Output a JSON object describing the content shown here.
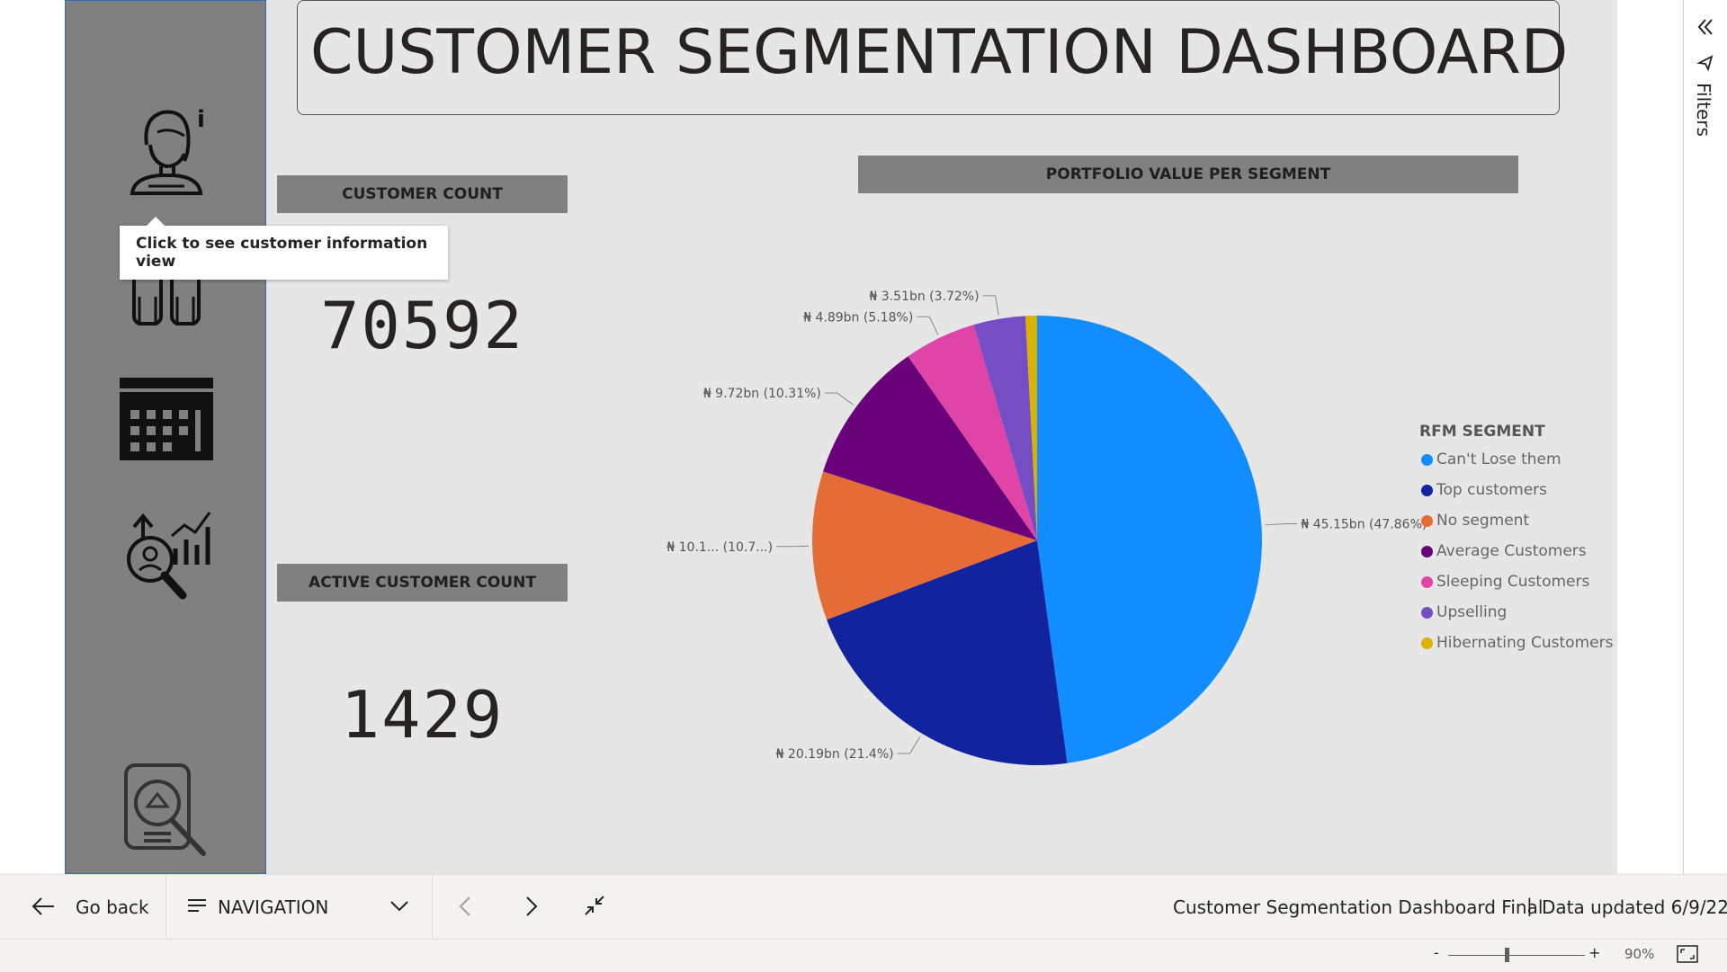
{
  "dashboard": {
    "title": "CUSTOMER SEGMENTATION DASHBOARD",
    "customer_count_label": "CUSTOMER COUNT",
    "customer_count_value": "70592",
    "active_customer_count_label": "ACTIVE CUSTOMER COUNT",
    "active_customer_count_value": "1429",
    "tooltip": "Click to see customer information view",
    "nav_icons": [
      "customer-info-icon",
      "customers-group-icon",
      "calendar-icon",
      "analytics-icon",
      "report-search-icon"
    ]
  },
  "chart_data": {
    "type": "pie",
    "title": "PORTFOLIO VALUE PER SEGMENT",
    "legend_title": "RFM SEGMENT",
    "legend_position": "right",
    "categories": [
      "Can't Lose them",
      "Top customers",
      "No segment",
      "Average Customers",
      "Sleeping Customers",
      "Upselling",
      "Hibernating Customers"
    ],
    "values": [
      47.86,
      21.4,
      10.7,
      10.31,
      5.18,
      3.72,
      0.83
    ],
    "data_labels": [
      "₦ 45.15bn (47.86%)",
      "₦ 20.19bn (21.4%)",
      "₦ 10.1... (10.7...)",
      "₦ 9.72bn (10.31%)",
      "₦ 4.89bn (5.18%)",
      "₦ 3.51bn (3.72%)",
      ""
    ],
    "colors": [
      "#118dff",
      "#12239e",
      "#e66c37",
      "#6b007b",
      "#e044a7",
      "#744ec2",
      "#d9b300"
    ]
  },
  "bottom_bar": {
    "go_back": "Go back",
    "navigation": "NAVIGATION",
    "report_name": "Customer Segmentation Dashboard Final",
    "separator": "|",
    "data_updated": "Data updated 6/9/22"
  },
  "status_bar": {
    "zoom_minus": "-",
    "zoom_plus": "+",
    "zoom_level": "90%"
  },
  "filters": {
    "label": "Filters"
  }
}
